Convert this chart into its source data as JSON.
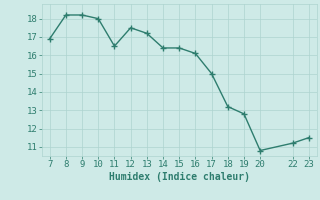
{
  "x": [
    7,
    8,
    9,
    10,
    11,
    12,
    13,
    14,
    15,
    16,
    17,
    18,
    19,
    20,
    22,
    23
  ],
  "y": [
    16.9,
    18.2,
    18.2,
    18.0,
    16.5,
    17.5,
    17.2,
    16.4,
    16.4,
    16.1,
    15.0,
    13.2,
    12.8,
    10.8,
    11.2,
    11.5
  ],
  "line_color": "#2e7d6e",
  "marker": "+",
  "bg_color": "#ceeae7",
  "grid_color": "#aed4d0",
  "tick_color": "#2e7d6e",
  "xlabel": "Humidex (Indice chaleur)",
  "xlim": [
    6.5,
    23.5
  ],
  "ylim": [
    10.5,
    18.8
  ],
  "xticks": [
    7,
    8,
    9,
    10,
    11,
    12,
    13,
    14,
    15,
    16,
    17,
    18,
    19,
    20,
    22,
    23
  ],
  "yticks": [
    11,
    12,
    13,
    14,
    15,
    16,
    17,
    18
  ],
  "xlabel_fontsize": 7,
  "tick_fontsize": 6.5,
  "linewidth": 1.0,
  "markersize": 4
}
